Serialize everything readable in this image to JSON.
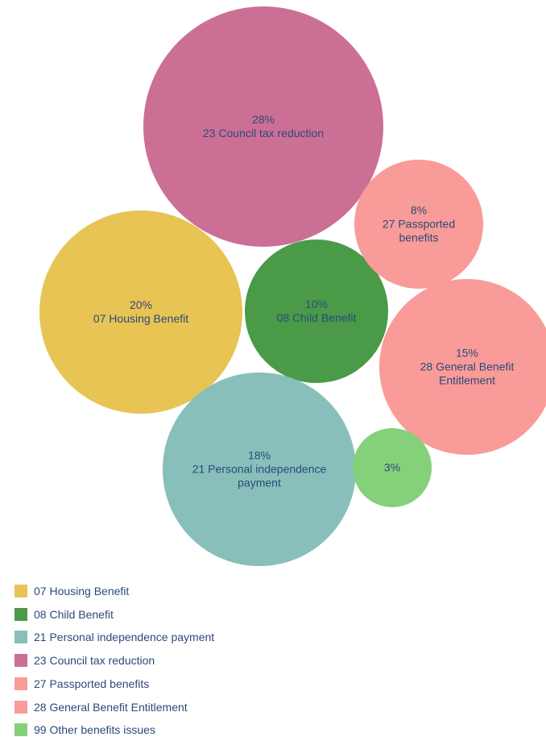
{
  "chart_data": {
    "type": "bubble",
    "categories": [
      "07 Housing Benefit",
      "08 Child Benefit",
      "21 Personal independence payment",
      "23 Council tax reduction",
      "27 Passported benefits",
      "28 General Benefit Entitlement",
      "99 Other benefits issues"
    ],
    "values": [
      20,
      10,
      18,
      28,
      8,
      15,
      3
    ],
    "value_labels": [
      "20%",
      "10%",
      "18%",
      "28%",
      "8%",
      "15%",
      "3%"
    ],
    "colors": [
      "#e8c454",
      "#4a9a48",
      "#88bfba",
      "#cc6f95",
      "#f99b98",
      "#f99b98",
      "#84d17a"
    ],
    "legend": "bottom-left"
  }
}
